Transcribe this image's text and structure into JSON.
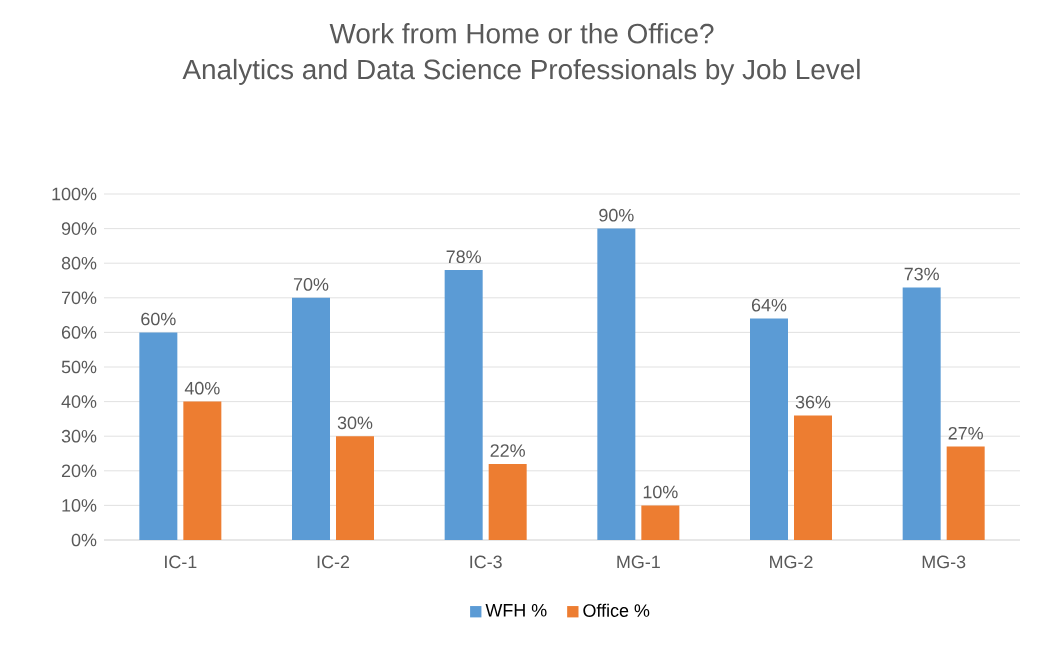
{
  "chart_data": {
    "type": "bar",
    "title": "Work from Home or the Office?",
    "subtitle": "Analytics and Data Science Professionals by Job Level",
    "categories": [
      "IC-1",
      "IC-2",
      "IC-3",
      "MG-1",
      "MG-2",
      "MG-3"
    ],
    "series": [
      {
        "name": "WFH %",
        "color": "#5b9bd5",
        "values": [
          60,
          70,
          78,
          90,
          64,
          73
        ],
        "value_labels": [
          "60%",
          "70%",
          "78%",
          "90%",
          "64%",
          "73%"
        ]
      },
      {
        "name": "Office %",
        "color": "#ed7d31",
        "values": [
          40,
          30,
          22,
          10,
          36,
          27
        ],
        "value_labels": [
          "40%",
          "30%",
          "22%",
          "10%",
          "36%",
          "27%"
        ]
      }
    ],
    "ylim": [
      0,
      100
    ],
    "yticks": [
      {
        "value": 0,
        "label": "0%"
      },
      {
        "value": 10,
        "label": "10%"
      },
      {
        "value": 20,
        "label": "20%"
      },
      {
        "value": 30,
        "label": "30%"
      },
      {
        "value": 40,
        "label": "40%"
      },
      {
        "value": 50,
        "label": "50%"
      },
      {
        "value": 60,
        "label": "60%"
      },
      {
        "value": 70,
        "label": "70%"
      },
      {
        "value": 80,
        "label": "80%"
      },
      {
        "value": 90,
        "label": "90%"
      },
      {
        "value": 100,
        "label": "100%"
      }
    ],
    "grid": "y",
    "legend": "bottom"
  }
}
